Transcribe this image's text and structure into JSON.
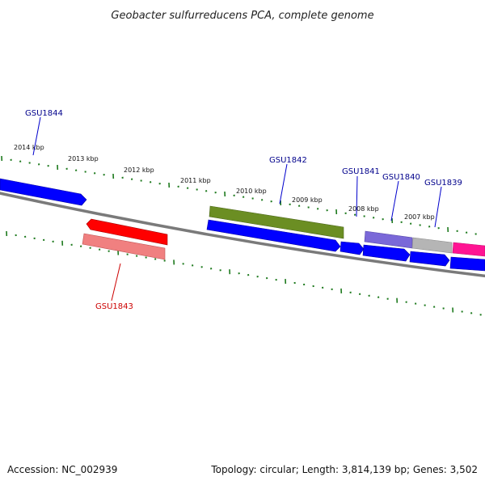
{
  "title": "Geobacter sulfurreducens PCA, complete genome",
  "footer": {
    "accession": "Accession: NC_002939",
    "summary": "Topology: circular; Length: 3,814,139 bp; Genes: 3,502"
  },
  "colors": {
    "backbone": "#7a7a7a",
    "tick": "#1e7a1e",
    "forward_gene": "#0000ff",
    "reverse_gene": "#ff0000",
    "reverse_gene_light": "#f08080",
    "olive_feature": "#6b8e23",
    "purple_feature": "#7a68d8",
    "grey_feature": "#b5b5b5",
    "pink_feature": "#ff1493",
    "label_forward": "#00008b",
    "label_reverse": "#cc0000"
  },
  "scale_labels": [
    "2014 kbp",
    "2013 kbp",
    "2012 kbp",
    "2011 kbp",
    "2010 kbp",
    "2009 kbp",
    "2008 kbp",
    "2007 kbp"
  ],
  "gene_labels": [
    "GSU1844",
    "GSU1843",
    "GSU1842",
    "GSU1841",
    "GSU1840",
    "GSU1839"
  ]
}
